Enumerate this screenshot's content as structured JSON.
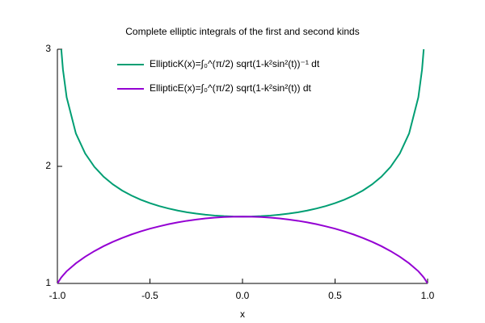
{
  "chart_data": {
    "type": "line",
    "title": "Complete elliptic integrals of the first and second kinds",
    "x_label": "x",
    "x": [
      -1,
      -0.98,
      -0.97,
      -0.95,
      -0.9,
      -0.85,
      -0.8,
      -0.75,
      -0.7,
      -0.65,
      -0.6,
      -0.55,
      -0.5,
      -0.45,
      -0.4,
      -0.35,
      -0.3,
      -0.25,
      -0.2,
      -0.15,
      -0.1,
      -0.05,
      0,
      0.05,
      0.1,
      0.15,
      0.2,
      0.25,
      0.3,
      0.35,
      0.4,
      0.45,
      0.5,
      0.55,
      0.6,
      0.65,
      0.7,
      0.75,
      0.8,
      0.85,
      0.9,
      0.95,
      0.97,
      0.98,
      1
    ],
    "series": [
      {
        "name": "EllipticK(x)=∫₀^(π/2) sqrt(1-k²sin²(t))⁻¹ dt",
        "color": "#009e73",
        "values": [
          null,
          3.02,
          2.827,
          2.59,
          2.2805,
          2.1099,
          1.9953,
          1.911,
          1.8457,
          1.7934,
          1.7508,
          1.7153,
          1.6858,
          1.6609,
          1.64,
          1.6225,
          1.608,
          1.5962,
          1.5869,
          1.5797,
          1.5747,
          1.5718,
          1.5708,
          1.5718,
          1.5747,
          1.5797,
          1.5869,
          1.5962,
          1.608,
          1.6225,
          1.64,
          1.6609,
          1.6858,
          1.7153,
          1.7508,
          1.7934,
          1.8457,
          1.911,
          1.9953,
          2.1099,
          2.2805,
          2.59,
          2.827,
          3.02,
          null
        ]
      },
      {
        "name": "EllipticE(x)=∫₀^(π/2) sqrt(1-k²sin²(t)) dt",
        "color": "#9400d3",
        "values": [
          1,
          1.0495,
          1.068,
          1.104,
          1.1717,
          1.2281,
          1.2763,
          1.3184,
          1.3558,
          1.3887,
          1.4181,
          1.4443,
          1.4675,
          1.4876,
          1.5058,
          1.5214,
          1.5348,
          1.5459,
          1.555,
          1.5619,
          1.5669,
          1.5698,
          1.5708,
          1.5698,
          1.5669,
          1.5619,
          1.555,
          1.5459,
          1.5348,
          1.5214,
          1.5058,
          1.4876,
          1.4675,
          1.4443,
          1.4181,
          1.3887,
          1.3558,
          1.3184,
          1.2763,
          1.2281,
          1.1717,
          1.104,
          1.068,
          1.0495,
          1
        ]
      }
    ],
    "xlim": [
      -1,
      1
    ],
    "ylim": [
      1,
      3
    ],
    "xticks": [
      {
        "value": -1,
        "label": "-1.0"
      },
      -0.5,
      {
        "value": 0,
        "label": "0.0"
      },
      0.5,
      {
        "value": 1,
        "label": "1.0"
      }
    ],
    "yticks": [
      1,
      2,
      3
    ],
    "grid": false,
    "legend": "top-left"
  }
}
